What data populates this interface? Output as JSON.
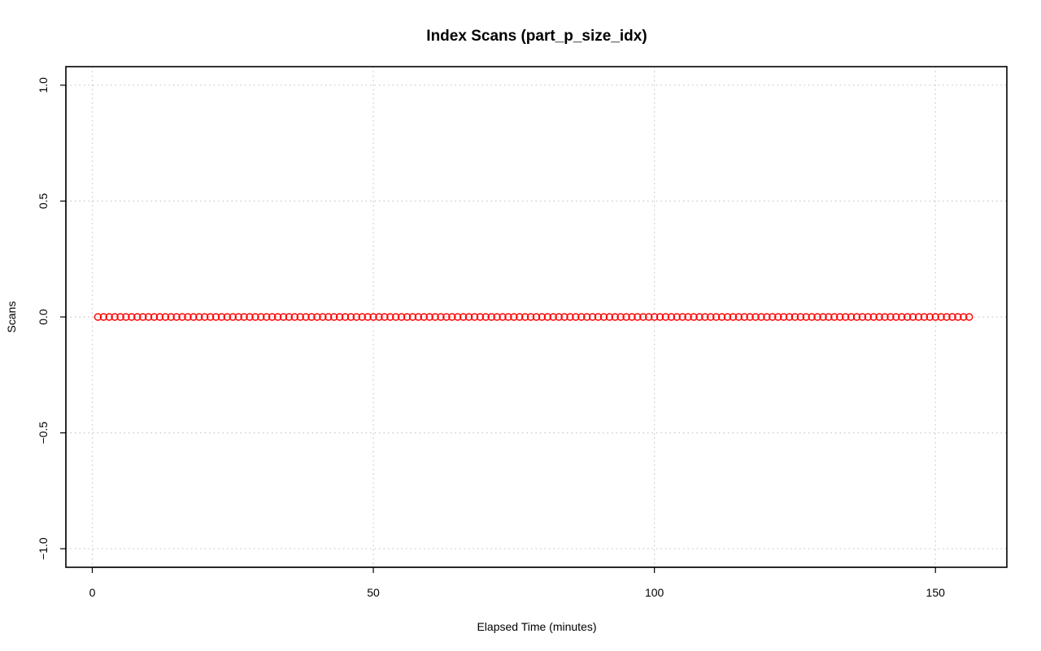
{
  "chart_data": {
    "type": "scatter",
    "title": "Index Scans (part_p_size_idx)",
    "xlabel": "Elapsed Time (minutes)",
    "ylabel": "Scans",
    "xlim": [
      -4.7,
      162.7
    ],
    "ylim": [
      -1.08,
      1.08
    ],
    "x_ticks": [
      0,
      50,
      100,
      150
    ],
    "y_ticks": [
      -1.0,
      -0.5,
      0.0,
      0.5,
      1.0
    ],
    "x_tick_labels": [
      "0",
      "50",
      "100",
      "150"
    ],
    "y_tick_labels": [
      "−1.0",
      "−0.5",
      "0.0",
      "0.5",
      "1.0"
    ],
    "grid": true,
    "marker": "open-circle",
    "color": "#ff0000",
    "series": [
      {
        "x_start": 1,
        "x_end": 156,
        "x_step": 1,
        "y_constant": 0
      }
    ]
  }
}
